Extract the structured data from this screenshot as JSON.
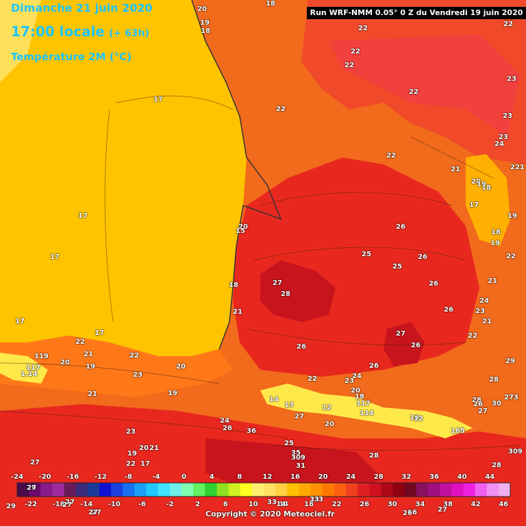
{
  "header": {
    "date": "Dimanche 21 juin 2020",
    "time": "17:00 locale",
    "offset": "(+ 63h)",
    "variable": "Température 2M (°C)"
  },
  "run_info": "Run WRF-NMM 0.05° 0 Z du Vendredi 19 juin 2020",
  "copyright": "Copyright © 2020 Meteociel.fr",
  "colors": {
    "sea": "#ffc400",
    "land_base": "#f26a1b",
    "warm_red": "#f04a2a",
    "hot_red": "#e8281e",
    "hot_core": "#c8141c",
    "pink": "#f23c46",
    "mountain_yellow": "#ffe94a",
    "contour": "#3a2010"
  },
  "map_labels": [
    {
      "text": "20"
    },
    {
      "text": "18"
    },
    {
      "text": "19"
    },
    {
      "text": "18"
    },
    {
      "text": "22"
    },
    {
      "text": "22"
    },
    {
      "text": "22"
    },
    {
      "text": "22"
    },
    {
      "text": "23"
    },
    {
      "text": "22"
    },
    {
      "text": "17"
    },
    {
      "text": "22"
    },
    {
      "text": "23"
    },
    {
      "text": "23"
    },
    {
      "text": "24"
    },
    {
      "text": "22"
    },
    {
      "text": "21"
    },
    {
      "text": "221"
    },
    {
      "text": "20"
    },
    {
      "text": "19"
    },
    {
      "text": "18"
    },
    {
      "text": "17"
    },
    {
      "text": "19"
    },
    {
      "text": "18"
    },
    {
      "text": "17"
    },
    {
      "text": "20"
    },
    {
      "text": "15"
    },
    {
      "text": "26"
    },
    {
      "text": "19"
    },
    {
      "text": "17"
    },
    {
      "text": "25"
    },
    {
      "text": "26"
    },
    {
      "text": "25"
    },
    {
      "text": "22"
    },
    {
      "text": "18"
    },
    {
      "text": "27"
    },
    {
      "text": "26"
    },
    {
      "text": "21"
    },
    {
      "text": "28"
    },
    {
      "text": "24"
    },
    {
      "text": "26"
    },
    {
      "text": "23"
    },
    {
      "text": "21"
    },
    {
      "text": "17"
    },
    {
      "text": "21"
    },
    {
      "text": "17"
    },
    {
      "text": "22"
    },
    {
      "text": "27"
    },
    {
      "text": "26"
    },
    {
      "text": "22"
    },
    {
      "text": "26"
    },
    {
      "text": "29"
    },
    {
      "text": "119"
    },
    {
      "text": "117"
    },
    {
      "text": "1.14"
    },
    {
      "text": "20"
    },
    {
      "text": "21"
    },
    {
      "text": "19"
    },
    {
      "text": "22"
    },
    {
      "text": "20"
    },
    {
      "text": "23"
    },
    {
      "text": "26"
    },
    {
      "text": "22"
    },
    {
      "text": "24"
    },
    {
      "text": "23"
    },
    {
      "text": "28"
    },
    {
      "text": "21"
    },
    {
      "text": "19"
    },
    {
      "text": "20"
    },
    {
      "text": "18"
    },
    {
      "text": "14"
    },
    {
      "text": "13"
    },
    {
      "text": "117"
    },
    {
      "text": "114"
    },
    {
      "text": "12"
    },
    {
      "text": "28"
    },
    {
      "text": "30"
    },
    {
      "text": "27"
    },
    {
      "text": "273"
    },
    {
      "text": "26"
    },
    {
      "text": "27"
    },
    {
      "text": "20"
    },
    {
      "text": "19"
    },
    {
      "text": "12"
    },
    {
      "text": "24"
    },
    {
      "text": "26"
    },
    {
      "text": "23"
    },
    {
      "text": "36"
    },
    {
      "text": "165"
    },
    {
      "text": "25"
    },
    {
      "text": "20"
    },
    {
      "text": "21"
    },
    {
      "text": "19"
    },
    {
      "text": "35"
    },
    {
      "text": "28"
    },
    {
      "text": "309"
    },
    {
      "text": "309"
    },
    {
      "text": "22"
    },
    {
      "text": "17"
    },
    {
      "text": "27"
    },
    {
      "text": "31"
    },
    {
      "text": "28"
    },
    {
      "text": "29"
    },
    {
      "text": "27"
    },
    {
      "text": "33"
    },
    {
      "text": "14"
    },
    {
      "text": "33"
    },
    {
      "text": "27"
    },
    {
      "text": "26"
    },
    {
      "text": "27"
    }
  ],
  "scale": {
    "top_labels": [
      "-24",
      "-20",
      "-16",
      "-12",
      "-8",
      "-4",
      "0",
      "4",
      "8",
      "12",
      "16",
      "20",
      "24",
      "28",
      "32",
      "36",
      "40",
      "44"
    ],
    "bottom_labels": [
      "-22",
      "-18",
      "-14",
      "-10",
      "-6",
      "-2",
      "2",
      "6",
      "10",
      "14",
      "18",
      "22",
      "26",
      "30",
      "34",
      "38",
      "42",
      "46"
    ],
    "colors": [
      "#4a0a4a",
      "#6a0a6a",
      "#8a1a8a",
      "#a02aa0",
      "#6a1a5a",
      "#3a2a7a",
      "#1a3a9a",
      "#1010d0",
      "#1a40e0",
      "#1a70f0",
      "#1aa0f8",
      "#20c8ff",
      "#40e0ff",
      "#70f0e8",
      "#80ffb0",
      "#60f060",
      "#30d030",
      "#90e020",
      "#d0f020",
      "#ffff20",
      "#fff070",
      "#ffe060",
      "#ffd040",
      "#ffc000",
      "#ffa800",
      "#ff9000",
      "#ff7800",
      "#ff6010",
      "#f04020",
      "#e02020",
      "#d01020",
      "#b00818",
      "#900010",
      "#700820",
      "#8a1060",
      "#a01080",
      "#c010a0",
      "#e010c0",
      "#f020e0",
      "#f060f0",
      "#f090f0",
      "#f0b0f0"
    ],
    "extra_bottom_labels": [
      "29",
      "27",
      "27",
      "33",
      "26",
      "27"
    ]
  }
}
